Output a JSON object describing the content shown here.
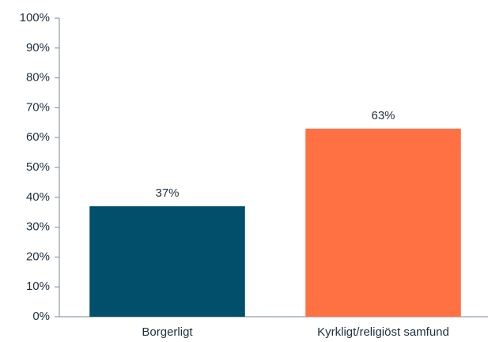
{
  "chart_data": {
    "type": "bar",
    "categories": [
      "Borgerligt",
      "Kyrkligt/religiöst samfund"
    ],
    "values": [
      37,
      63
    ],
    "value_labels": [
      "37%",
      "63%"
    ],
    "colors": [
      "#024f6b",
      "#ff7043"
    ],
    "ylim": [
      0,
      100
    ],
    "yticks": [
      {
        "value": 0,
        "label": "0%"
      },
      {
        "value": 10,
        "label": "10%"
      },
      {
        "value": 20,
        "label": "20%"
      },
      {
        "value": 30,
        "label": "30%"
      },
      {
        "value": 40,
        "label": "40%"
      },
      {
        "value": 50,
        "label": "50%"
      },
      {
        "value": 60,
        "label": "60%"
      },
      {
        "value": 70,
        "label": "70%"
      },
      {
        "value": 80,
        "label": "80%"
      },
      {
        "value": 90,
        "label": "90%"
      },
      {
        "value": 100,
        "label": "100%"
      }
    ],
    "grid": false
  }
}
